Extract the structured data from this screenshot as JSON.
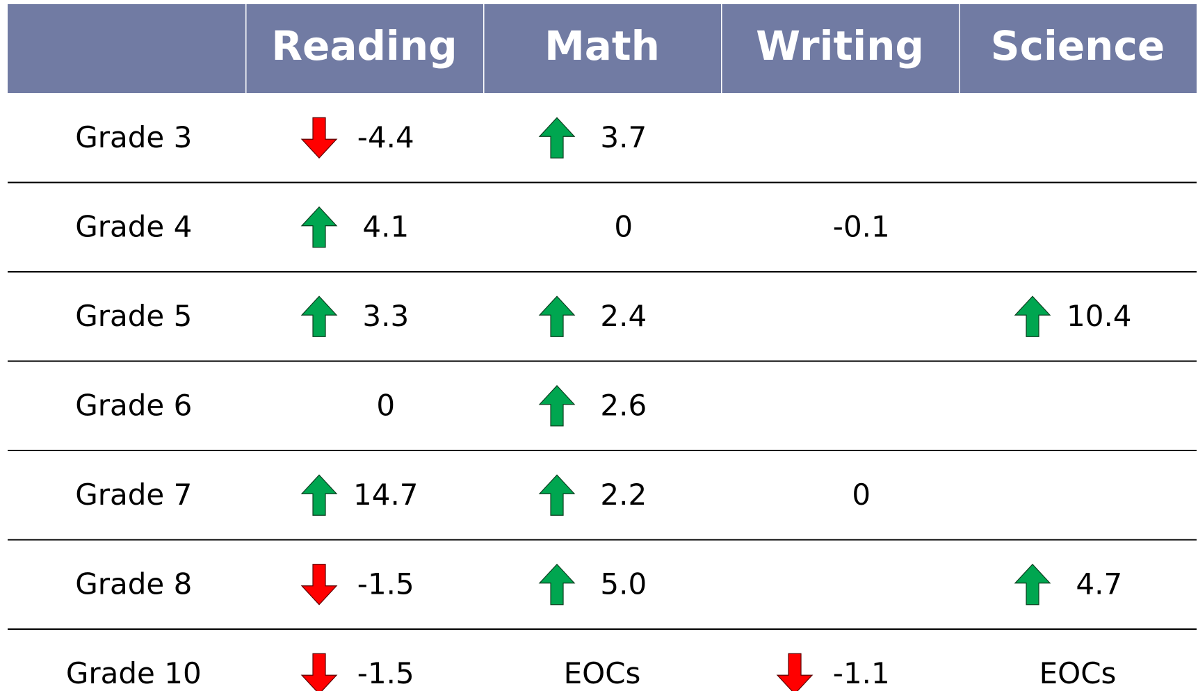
{
  "table": {
    "header": [
      null,
      "Reading",
      "Math",
      "Writing",
      "Science"
    ],
    "rows": [
      [
        {
          "text": "Grade 3"
        },
        {
          "text": "-4.4",
          "arrow": "down"
        },
        {
          "text": "3.7",
          "arrow": "up"
        },
        null,
        null
      ],
      [
        {
          "text": "Grade 4"
        },
        {
          "text": "4.1",
          "arrow": "up"
        },
        {
          "text": "0"
        },
        {
          "text": "-0.1"
        },
        null
      ],
      [
        {
          "text": "Grade 5"
        },
        {
          "text": "3.3",
          "arrow": "up"
        },
        {
          "text": "2.4",
          "arrow": "up"
        },
        null,
        {
          "text": "10.4",
          "arrow": "up"
        }
      ],
      [
        {
          "text": "Grade 6"
        },
        {
          "text": "0"
        },
        {
          "text": "2.6",
          "arrow": "up"
        },
        null,
        null
      ],
      [
        {
          "text": "Grade 7"
        },
        {
          "text": "14.7",
          "arrow": "up"
        },
        {
          "text": "2.2",
          "arrow": "up"
        },
        {
          "text": "0"
        },
        null
      ],
      [
        {
          "text": "Grade 8"
        },
        {
          "text": "-1.5",
          "arrow": "down"
        },
        {
          "text": "5.0",
          "arrow": "up"
        },
        null,
        {
          "text": "4.7",
          "arrow": "up"
        }
      ],
      [
        {
          "text": "Grade 10"
        },
        {
          "text": "-1.5",
          "arrow": "down"
        },
        {
          "text": "EOCs"
        },
        {
          "text": "-1.1",
          "arrow": "down"
        },
        {
          "text": "EOCs"
        }
      ]
    ]
  }
}
